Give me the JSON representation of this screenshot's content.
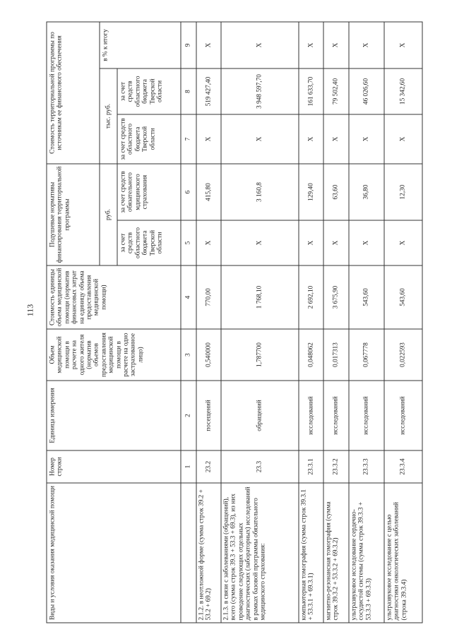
{
  "page_number": "113",
  "header": {
    "kind": "Виды и условия оказания медицинской помощи",
    "row_number": "Номер строки",
    "unit": "Единица измерения",
    "volume": "Объем медицинской помощи в расчете на одного жителя (норматив объемов предоставления медицинской помощи в расчете на одно застрахованное лицо)",
    "unit_cost": "Стоимость единицы объема медицинской помощи (норматив финансовых затрат на единицу объема предоставления медицинской помощи)",
    "per_capita": "Подушевые нормативы финансирования территориальной программы",
    "per_capita_unit": "руб.",
    "program_cost": "Стоимость территориальной программы по источникам ее финансового обеспечения",
    "program_cost_unit": "тыс. руб.",
    "percent_total": "в % к итогу",
    "sub_budget": "за счет средств областного бюджета Тверской области",
    "sub_oms": "за счет средств обязательного мдицинского страхования",
    "numbers": [
      "1",
      "2",
      "3",
      "4",
      "5",
      "6",
      "7",
      "8",
      "9"
    ]
  },
  "rows": [
    [
      "2.1.2. в неотложной форме (сумма строк 39.2 + 53.2 + 69.2)",
      "23.2",
      "посещений",
      "0,540000",
      "770,00",
      "X",
      "415,80",
      "X",
      "519 427,40",
      "X"
    ],
    [
      "2.1.3. в связи с заболеваниями (обращений), всего (сумма строк 39.3 + 53.3 + 69.3), из них проведение следующих отдельных диагностических (лабораторных) исследований в рамках базовой программы обязательного медицинского страхования:",
      "23.3",
      "обращений",
      "1,787700",
      "1 768,10",
      "X",
      "3 160,8",
      "X",
      "3 948 597,70",
      "X"
    ],
    [
      "компьютерная томография (сумма строк 39.3.1 + 53.3.1 + 69.3.1)",
      "23.3.1",
      "исследований",
      "0,048062",
      "2 692,10",
      "X",
      "129,40",
      "X",
      "161 633,70",
      "X"
    ],
    [
      "магнитно-резонансная томография (сумма строк 39.3.2 + 53.3.2 + 69.3.2)",
      "23.3.2",
      "исследований",
      "0,017313",
      "3 675,90",
      "X",
      "63,60",
      "X",
      "79 502,40",
      "X"
    ],
    [
      "ультразвуковое исследование сердечно-сосудистой системы (сумма строк 39.3.3 + 53.3.3 + 69.3.3)",
      "23.3.3",
      "исследований",
      "0,067778",
      "543,60",
      "X",
      "36,80",
      "X",
      "46 026,60",
      "X"
    ],
    [
      "ультразвуковое исследование с целью диагностики онкологических заболеваний (строка 39.3.4)",
      "23.3.4",
      "исследований",
      "0,022593",
      "543,60",
      "X",
      "12,30",
      "X",
      "15 342,60",
      "X"
    ]
  ]
}
